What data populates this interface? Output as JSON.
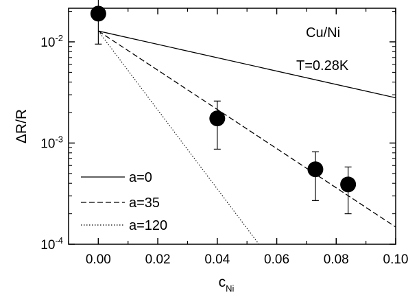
{
  "chart_data": {
    "type": "scatter",
    "title": "",
    "xlabel": "c",
    "xlabel_sub": "Ni",
    "ylabel": "ΔR/R",
    "xlim": [
      -0.01,
      0.1
    ],
    "ylim": [
      0.0001,
      0.03
    ],
    "yscale": "log",
    "x_ticks": [
      0.0,
      0.02,
      0.04,
      0.06,
      0.08,
      0.1
    ],
    "x_tick_labels": [
      "0.00",
      "0.02",
      "0.04",
      "0.06",
      "0.08",
      "0.10"
    ],
    "y_ticks": [
      0.01,
      0.001,
      0.0001
    ],
    "y_tick_labels": [
      {
        "base": "10",
        "exp": "-2"
      },
      {
        "base": "10",
        "exp": "-3"
      },
      {
        "base": "10",
        "exp": "-4"
      }
    ],
    "grid": false,
    "legend_position": "bottom-left",
    "annotations": [
      "Cu/Ni",
      "T=0.28K"
    ],
    "points": [
      {
        "x": 0.0,
        "y": 0.019,
        "err_low": 0.0095,
        "err_high": 0.028
      },
      {
        "x": 0.04,
        "y": 0.00175,
        "err_low": 0.00087,
        "err_high": 0.0026
      },
      {
        "x": 0.073,
        "y": 0.00055,
        "err_low": 0.00027,
        "err_high": 0.00082
      },
      {
        "x": 0.084,
        "y": 0.00039,
        "err_low": 0.0002,
        "err_high": 0.00058
      }
    ],
    "series": [
      {
        "name": "a=0",
        "style": "solid",
        "x": [
          0.0,
          0.1
        ],
        "y": [
          0.0128,
          0.0028
        ]
      },
      {
        "name": "a=35",
        "style": "dashed",
        "x": [
          0.0,
          0.1
        ],
        "y": [
          0.0128,
          0.000148
        ]
      },
      {
        "name": "a=120",
        "style": "dotted",
        "x": [
          0.0,
          0.054
        ],
        "y": [
          0.0128,
          0.0001
        ]
      }
    ]
  }
}
